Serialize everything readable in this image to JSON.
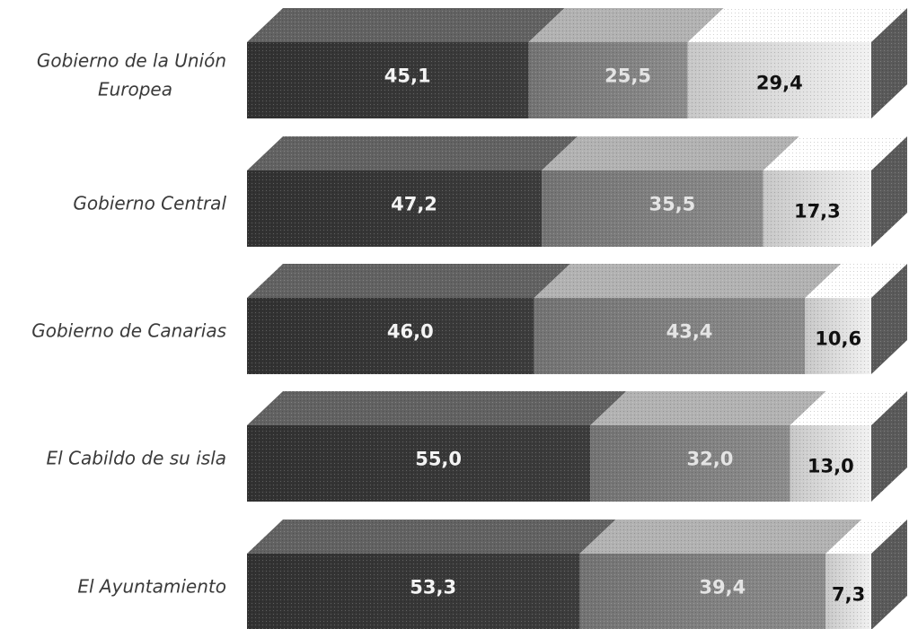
{
  "chart_data": {
    "type": "bar",
    "stacked": true,
    "orientation": "horizontal",
    "style": "3d",
    "categories": [
      "Gobierno de la Unión Europea",
      "Gobierno Central",
      "Gobierno de Canarias",
      "El Cabildo de su isla",
      "El Ayuntamiento"
    ],
    "category_label_lines": [
      [
        "Gobierno de la Unión",
        "Europea"
      ],
      [
        "Gobierno Central"
      ],
      [
        "Gobierno de Canarias"
      ],
      [
        "El Cabildo de su isla"
      ],
      [
        "El Ayuntamiento"
      ]
    ],
    "series": [
      {
        "values": [
          45.1,
          47.2,
          46.0,
          55.0,
          53.3
        ],
        "labels": [
          "45,1",
          "47,2",
          "46,0",
          "55,0",
          "53,3"
        ]
      },
      {
        "values": [
          25.5,
          35.5,
          43.4,
          32.0,
          39.4
        ],
        "labels": [
          "25,5",
          "35,5",
          "43,4",
          "32,0",
          "39,4"
        ]
      },
      {
        "values": [
          29.4,
          17.3,
          10.6,
          13.0,
          7.3
        ],
        "labels": [
          "29,4",
          "17,3",
          "10,6",
          "13,0",
          "7,3"
        ]
      }
    ],
    "xlim": [
      0,
      100
    ],
    "colors": [
      "#3c3c3c",
      "#8c8c8c",
      "#f2f2f2"
    ],
    "label_colors": [
      "#f4f4f4",
      "#e4e4e4",
      "#111111"
    ],
    "grid": false,
    "legend": "none"
  }
}
